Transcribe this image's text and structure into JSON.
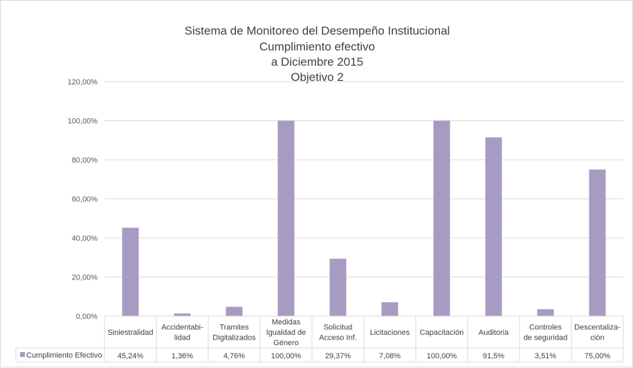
{
  "chart_data": {
    "type": "bar",
    "title_lines": [
      "Sistema de Monitoreo del Desempeño Institucional",
      "Cumplimiento efectivo",
      "a Diciembre 2015",
      "Objetivo 2"
    ],
    "categories": [
      [
        "Siniestralidad"
      ],
      [
        "Accidentabi-",
        "lidad"
      ],
      [
        "Tramites",
        "Digitalizados"
      ],
      [
        "Medidas",
        "Igualdad de",
        "Género"
      ],
      [
        "Solicitud",
        "Acceso Inf."
      ],
      [
        "Licitaciones"
      ],
      [
        "Capacitación"
      ],
      [
        "Auditoria"
      ],
      [
        "Controles",
        "de seguridad"
      ],
      [
        "Descentaliza-",
        "ción"
      ]
    ],
    "series": [
      {
        "name": "Cumplimiento Efectivo",
        "color": "#a89bc2",
        "values": [
          45.24,
          1.36,
          4.76,
          100.0,
          29.37,
          7.08,
          100.0,
          91.5,
          3.51,
          75.0
        ],
        "labels": [
          "45,24%",
          "1,36%",
          "4,76%",
          "100,00%",
          "29,37%",
          "7,08%",
          "100,00%",
          "91,5%",
          "3,51%",
          "75,00%"
        ]
      }
    ],
    "y_ticks": [
      "0,00%",
      "20,00%",
      "40,00%",
      "60,00%",
      "80,00%",
      "100,00%",
      "120,00%"
    ],
    "ylim": [
      0,
      120
    ],
    "grid": true,
    "legend": "data-table"
  }
}
